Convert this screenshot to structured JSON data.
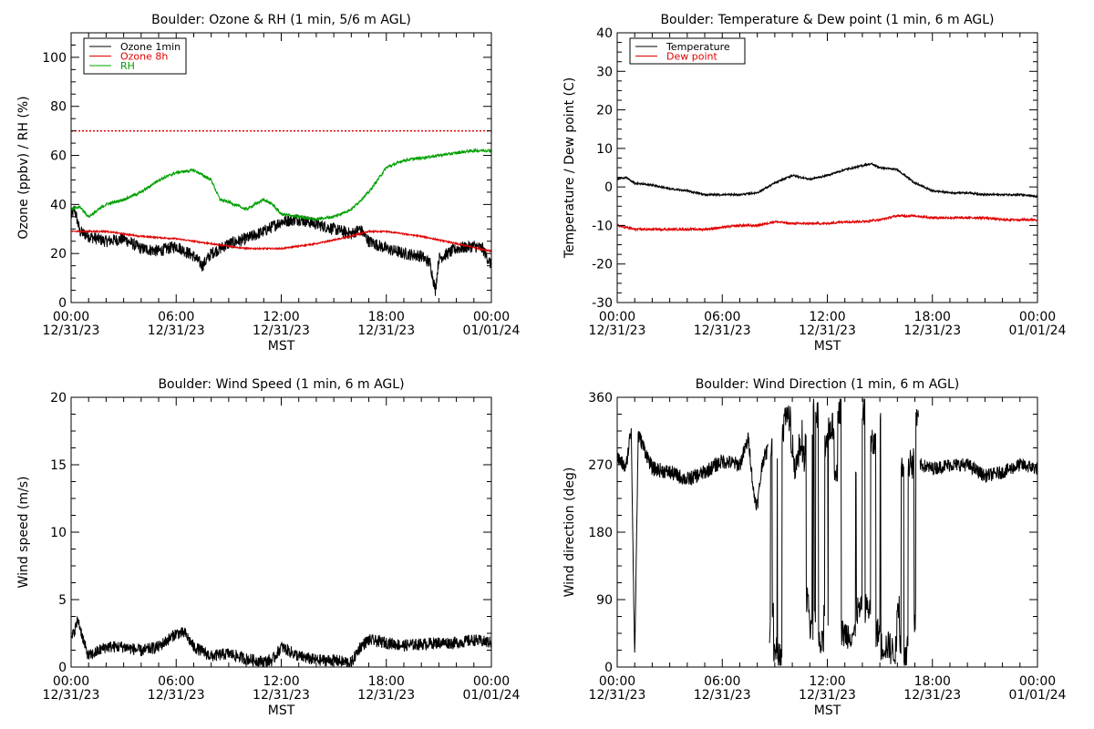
{
  "chart_data": [
    {
      "id": "ozone-rh",
      "type": "line",
      "title": "Boulder: Ozone & RH (1 min, 5/6 m AGL)",
      "ylabel": "Ozone (ppbv) / RH (%)",
      "xlabel": "MST",
      "xlim": [
        0,
        24
      ],
      "ylim": [
        0,
        110
      ],
      "yticks": [
        0,
        20,
        40,
        60,
        80,
        100
      ],
      "xticks": [
        {
          "time": "00:00",
          "date": "12/31/23"
        },
        {
          "time": "06:00",
          "date": "12/31/23"
        },
        {
          "time": "12:00",
          "date": "12/31/23"
        },
        {
          "time": "18:00",
          "date": "12/31/23"
        },
        {
          "time": "00:00",
          "date": "01/01/24"
        }
      ],
      "legend_position": "top-left",
      "reference_lines": [
        {
          "y": 70,
          "color": "#e00000",
          "style": "dotted"
        }
      ],
      "series": [
        {
          "name": "Ozone 1min",
          "color": "#000000",
          "noise": 2.5,
          "x": [
            0,
            0.2,
            0.5,
            1,
            2,
            3,
            4,
            5,
            6,
            7,
            7.5,
            8,
            9,
            10,
            11,
            12,
            13,
            14,
            15,
            16,
            16.5,
            17,
            18,
            19,
            20,
            20.5,
            20.8,
            21,
            22,
            23,
            23.5,
            24
          ],
          "y": [
            35,
            38,
            29,
            27,
            25,
            26,
            22,
            21,
            23,
            19,
            15,
            20,
            24,
            26,
            29,
            33,
            34,
            32,
            30,
            28,
            30,
            25,
            22,
            20,
            19,
            16,
            5,
            18,
            22,
            23,
            22,
            15
          ]
        },
        {
          "name": "Ozone 8h",
          "color": "#e00000",
          "noise": 0.3,
          "x": [
            0,
            2,
            4,
            6,
            8,
            10,
            12,
            14,
            16,
            17,
            18,
            20,
            22,
            24
          ],
          "y": [
            29,
            29,
            27,
            26,
            24,
            22,
            22,
            24,
            27,
            29,
            29,
            27,
            24,
            21
          ]
        },
        {
          "name": "RH",
          "color": "#00a000",
          "noise": 0.6,
          "x": [
            0,
            0.5,
            1,
            2,
            3,
            4,
            5,
            6,
            7,
            8,
            8.5,
            9,
            10,
            11,
            11.5,
            12,
            13,
            14,
            15,
            16,
            17,
            18,
            19,
            20,
            21,
            22,
            23,
            24
          ],
          "y": [
            38,
            39,
            35,
            40,
            42,
            45,
            50,
            53,
            54,
            50,
            42,
            41,
            38,
            42,
            40,
            36,
            35,
            34,
            35,
            38,
            45,
            55,
            58,
            59,
            60,
            61,
            62,
            62
          ]
        }
      ]
    },
    {
      "id": "temp-dew",
      "type": "line",
      "title": "Boulder: Temperature & Dew point (1 min, 6 m AGL)",
      "ylabel": "Temperature / Dew point (C)",
      "xlabel": "MST",
      "xlim": [
        0,
        24
      ],
      "ylim": [
        -30,
        40
      ],
      "yticks": [
        -30,
        -20,
        -10,
        0,
        10,
        20,
        30,
        40
      ],
      "xticks": [
        {
          "time": "00:00",
          "date": "12/31/23"
        },
        {
          "time": "06:00",
          "date": "12/31/23"
        },
        {
          "time": "12:00",
          "date": "12/31/23"
        },
        {
          "time": "18:00",
          "date": "12/31/23"
        },
        {
          "time": "00:00",
          "date": "01/01/24"
        }
      ],
      "legend_position": "top-left",
      "series": [
        {
          "name": "Temperature",
          "color": "#000000",
          "noise": 0.25,
          "x": [
            0,
            0.5,
            1,
            2,
            3,
            4,
            5,
            6,
            7,
            8,
            9,
            10,
            11,
            12,
            13,
            14,
            14.5,
            15,
            16,
            17,
            18,
            19,
            20,
            21,
            22,
            23,
            24
          ],
          "y": [
            2,
            2.5,
            1,
            0.5,
            -0.5,
            -1,
            -2,
            -2,
            -2,
            -1.5,
            1,
            3,
            2,
            3,
            4.5,
            5.5,
            6,
            5,
            4.5,
            1,
            -1,
            -1.5,
            -1.5,
            -2,
            -2,
            -2,
            -2.5
          ]
        },
        {
          "name": "Dew point",
          "color": "#e00000",
          "noise": 0.3,
          "x": [
            0,
            1,
            2,
            3,
            4,
            5,
            6,
            7,
            8,
            9,
            10,
            11,
            12,
            13,
            14,
            15,
            16,
            17,
            18,
            19,
            20,
            21,
            22,
            23,
            24
          ],
          "y": [
            -10,
            -11,
            -11,
            -11,
            -11,
            -11,
            -10.5,
            -10,
            -10,
            -9,
            -9.5,
            -9.5,
            -9.5,
            -9,
            -9,
            -8.5,
            -7.5,
            -7.5,
            -8,
            -8,
            -8,
            -8,
            -8.5,
            -8.5,
            -8.5
          ]
        }
      ]
    },
    {
      "id": "wind-speed",
      "type": "line",
      "title": "Boulder: Wind Speed (1 min, 6 m AGL)",
      "ylabel": "Wind speed (m/s)",
      "xlabel": "MST",
      "xlim": [
        0,
        24
      ],
      "ylim": [
        0,
        20
      ],
      "yticks": [
        0,
        5,
        10,
        15,
        20
      ],
      "xticks": [
        {
          "time": "00:00",
          "date": "12/31/23"
        },
        {
          "time": "06:00",
          "date": "12/31/23"
        },
        {
          "time": "12:00",
          "date": "12/31/23"
        },
        {
          "time": "18:00",
          "date": "12/31/23"
        },
        {
          "time": "00:00",
          "date": "01/01/24"
        }
      ],
      "series": [
        {
          "name": "",
          "color": "#000000",
          "noise": 0.45,
          "x": [
            0,
            0.4,
            0.8,
            1,
            2,
            3,
            4,
            5,
            6,
            6.5,
            7,
            8,
            9,
            10,
            11,
            11.5,
            12,
            13,
            14,
            15,
            16,
            16.5,
            17,
            18,
            19,
            20,
            21,
            22,
            23,
            24
          ],
          "y": [
            2,
            3.5,
            1.5,
            0.8,
            1.5,
            1.5,
            1.2,
            1.5,
            2.5,
            2.5,
            1.5,
            0.8,
            1,
            0.6,
            0.4,
            0.5,
            1.5,
            0.8,
            0.5,
            0.5,
            0.3,
            1.5,
            2,
            1.8,
            1.6,
            1.7,
            1.8,
            1.8,
            2,
            1.8
          ]
        }
      ]
    },
    {
      "id": "wind-direction",
      "type": "line",
      "title": "Boulder: Wind Direction (1 min, 6 m AGL)",
      "ylabel": "Wind direction (deg)",
      "xlabel": "MST",
      "xlim": [
        0,
        24
      ],
      "ylim": [
        0,
        360
      ],
      "yticks": [
        0,
        90,
        180,
        270,
        360
      ],
      "xticks": [
        {
          "time": "00:00",
          "date": "12/31/23"
        },
        {
          "time": "06:00",
          "date": "12/31/23"
        },
        {
          "time": "12:00",
          "date": "12/31/23"
        },
        {
          "time": "18:00",
          "date": "12/31/23"
        },
        {
          "time": "00:00",
          "date": "01/01/24"
        }
      ],
      "series": [
        {
          "name": "",
          "color": "#000000",
          "noise": 10,
          "x": [
            0,
            0.5,
            0.8,
            1,
            1.2,
            1.4,
            2,
            3,
            4,
            5,
            6,
            7,
            7.5,
            7.8,
            8,
            8.3,
            8.6
          ],
          "y": [
            280,
            265,
            320,
            10,
            310,
            300,
            265,
            260,
            250,
            260,
            275,
            270,
            305,
            230,
            215,
            275,
            290
          ]
        },
        {
          "name": "",
          "color": "#000000",
          "noise": 0,
          "wind_switching": true,
          "x": [
            8.7,
            17.2
          ],
          "y": [
            0,
            360
          ]
        },
        {
          "name": "",
          "color": "#000000",
          "noise": 9,
          "x": [
            17.3,
            18,
            19,
            20,
            21,
            22,
            23,
            24
          ],
          "y": [
            270,
            265,
            270,
            270,
            255,
            260,
            270,
            265
          ]
        }
      ]
    }
  ]
}
